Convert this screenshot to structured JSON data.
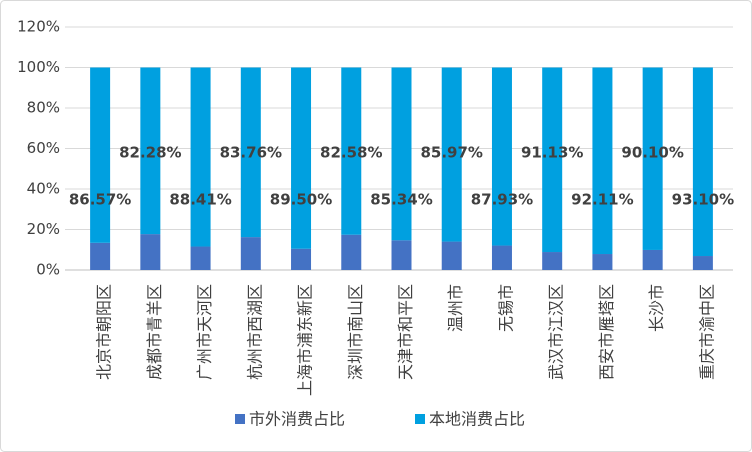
{
  "chart_data": {
    "type": "stacked_bar",
    "categories": [
      "北京市朝阳区",
      "成都市青羊区",
      "广州市天河区",
      "杭州市西湖区",
      "上海市浦东新区",
      "深圳市南山区",
      "天津市和平区",
      "温州市",
      "无锡市",
      "武汉市江汉区",
      "西安市雁塔区",
      "长沙市",
      "重庆市渝中区"
    ],
    "series": [
      {
        "name": "市外消费占比",
        "color": "#4472c4",
        "values": [
          13.43,
          17.72,
          11.59,
          16.24,
          10.5,
          17.42,
          14.66,
          14.03,
          12.07,
          8.87,
          7.89,
          9.9,
          6.9
        ]
      },
      {
        "name": "本地消费占比",
        "color": "#00a0e0",
        "values": [
          86.57,
          82.28,
          88.41,
          83.76,
          89.5,
          82.58,
          85.34,
          85.97,
          87.93,
          91.13,
          92.11,
          90.1,
          93.1
        ],
        "value_labels": [
          "86.57%",
          "82.28%",
          "88.41%",
          "83.76%",
          "89.50%",
          "82.58%",
          "85.34%",
          "85.97%",
          "87.93%",
          "91.13%",
          "92.11%",
          "90.10%",
          "93.10%"
        ]
      }
    ],
    "ylim": [
      0,
      120
    ],
    "yticks": [
      {
        "value": 0,
        "label": "0%"
      },
      {
        "value": 20,
        "label": "20%"
      },
      {
        "value": 40,
        "label": "40%"
      },
      {
        "value": 60,
        "label": "60%"
      },
      {
        "value": 80,
        "label": "80%"
      },
      {
        "value": 100,
        "label": "100%"
      },
      {
        "value": 120,
        "label": "120%"
      }
    ],
    "grid": true,
    "legend": "bottom"
  }
}
